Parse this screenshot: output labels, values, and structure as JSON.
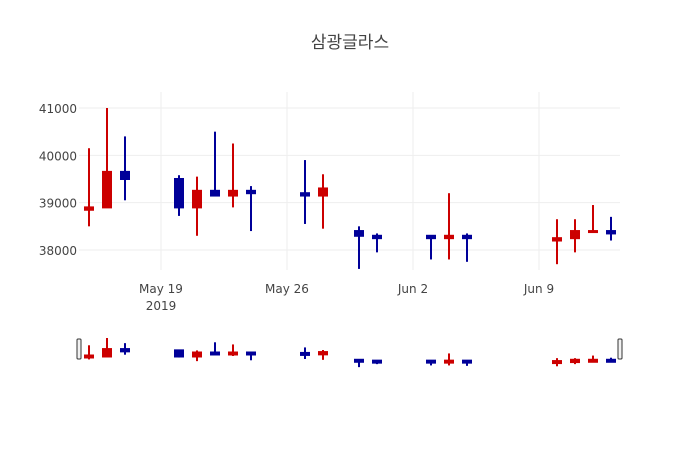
{
  "chart_data": {
    "type": "candlestick",
    "title": "삼광글라스",
    "xlabel": "",
    "ylabel": "",
    "ylim": [
      37500,
      41000
    ],
    "y_ticks": [
      38000,
      39000,
      40000,
      41000
    ],
    "y_tick_labels": [
      "38000",
      "39000",
      "40000",
      "41000"
    ],
    "x_ticks": [
      "2019-05-19",
      "2019-05-26",
      "2019-06-02",
      "2019-06-09"
    ],
    "x_tick_labels": [
      "May 19",
      "May 26",
      "Jun 2",
      "Jun 9"
    ],
    "x_tick_sublabel": "2019",
    "grid": true,
    "increasing_color": "#cc0000",
    "decreasing_color": "#000099",
    "rangeslider": true,
    "candles": [
      {
        "date": "2019-05-15",
        "open": 38850,
        "high": 40150,
        "low": 38500,
        "close": 38900
      },
      {
        "date": "2019-05-16",
        "open": 38900,
        "high": 41000,
        "low": 38900,
        "close": 39650
      },
      {
        "date": "2019-05-17",
        "open": 39650,
        "high": 40400,
        "low": 39050,
        "close": 39500
      },
      {
        "date": "2019-05-20",
        "open": 39500,
        "high": 39580,
        "low": 38720,
        "close": 38900
      },
      {
        "date": "2019-05-21",
        "open": 38900,
        "high": 39550,
        "low": 38300,
        "close": 39250
      },
      {
        "date": "2019-05-22",
        "open": 39250,
        "high": 40500,
        "low": 39150,
        "close": 39150
      },
      {
        "date": "2019-05-23",
        "open": 39150,
        "high": 40250,
        "low": 38900,
        "close": 39250
      },
      {
        "date": "2019-05-24",
        "open": 39250,
        "high": 39350,
        "low": 38400,
        "close": 39200
      },
      {
        "date": "2019-05-27",
        "open": 39200,
        "high": 39900,
        "low": 38550,
        "close": 39150
      },
      {
        "date": "2019-05-28",
        "open": 39150,
        "high": 39600,
        "low": 38450,
        "close": 39300
      },
      {
        "date": "2019-05-30",
        "open": 38400,
        "high": 38500,
        "low": 37600,
        "close": 38300
      },
      {
        "date": "2019-05-31",
        "open": 38300,
        "high": 38350,
        "low": 37950,
        "close": 38250
      },
      {
        "date": "2019-06-03",
        "open": 38300,
        "high": 38300,
        "low": 37800,
        "close": 38250
      },
      {
        "date": "2019-06-04",
        "open": 38250,
        "high": 39200,
        "low": 37800,
        "close": 38300
      },
      {
        "date": "2019-06-05",
        "open": 38300,
        "high": 38350,
        "low": 37750,
        "close": 38250
      },
      {
        "date": "2019-06-10",
        "open": 38200,
        "high": 38650,
        "low": 37700,
        "close": 38250
      },
      {
        "date": "2019-06-11",
        "open": 38250,
        "high": 38650,
        "low": 37950,
        "close": 38400
      },
      {
        "date": "2019-06-12",
        "open": 38400,
        "high": 38950,
        "low": 38400,
        "close": 38400
      },
      {
        "date": "2019-06-13",
        "open": 38400,
        "high": 38700,
        "low": 38200,
        "close": 38350
      }
    ]
  }
}
